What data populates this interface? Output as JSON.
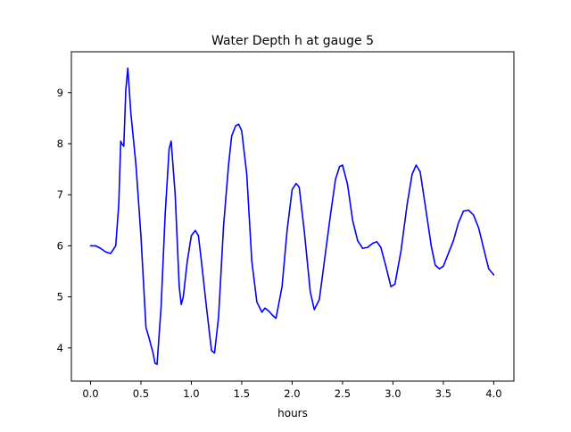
{
  "chart_data": {
    "type": "line",
    "title": "Water Depth h at gauge 5",
    "xlabel": "hours",
    "ylabel": "",
    "xlim": [
      -0.19,
      4.2
    ],
    "ylim": [
      3.35,
      9.8
    ],
    "xticks": [
      0.0,
      0.5,
      1.0,
      1.5,
      2.0,
      2.5,
      3.0,
      3.5,
      4.0
    ],
    "xtick_labels": [
      "0.0",
      "0.5",
      "1.0",
      "1.5",
      "2.0",
      "2.5",
      "3.0",
      "3.5",
      "4.0"
    ],
    "yticks": [
      4,
      5,
      6,
      7,
      8,
      9
    ],
    "ytick_labels": [
      "4",
      "5",
      "6",
      "7",
      "8",
      "9"
    ],
    "grid": false,
    "legend": "none",
    "series": [
      {
        "color": "#0000ff",
        "x": [
          0.0,
          0.05,
          0.1,
          0.15,
          0.2,
          0.25,
          0.28,
          0.3,
          0.31,
          0.33,
          0.35,
          0.37,
          0.4,
          0.45,
          0.5,
          0.55,
          0.58,
          0.62,
          0.64,
          0.66,
          0.7,
          0.74,
          0.78,
          0.8,
          0.84,
          0.88,
          0.9,
          0.92,
          0.96,
          1.0,
          1.04,
          1.07,
          1.1,
          1.15,
          1.2,
          1.23,
          1.27,
          1.32,
          1.37,
          1.4,
          1.44,
          1.47,
          1.5,
          1.55,
          1.6,
          1.65,
          1.7,
          1.73,
          1.77,
          1.8,
          1.84,
          1.9,
          1.95,
          2.0,
          2.04,
          2.07,
          2.12,
          2.18,
          2.22,
          2.27,
          2.32,
          2.38,
          2.43,
          2.47,
          2.5,
          2.55,
          2.6,
          2.65,
          2.7,
          2.75,
          2.8,
          2.84,
          2.88,
          2.93,
          2.98,
          3.02,
          3.08,
          3.14,
          3.19,
          3.23,
          3.27,
          3.32,
          3.38,
          3.42,
          3.46,
          3.5,
          3.55,
          3.6,
          3.65,
          3.7,
          3.75,
          3.8,
          3.85,
          3.9,
          3.95,
          4.0
        ],
        "y": [
          6.0,
          6.0,
          5.95,
          5.88,
          5.85,
          6.0,
          6.8,
          8.05,
          8.0,
          7.95,
          9.05,
          9.48,
          8.6,
          7.6,
          6.2,
          4.4,
          4.2,
          3.9,
          3.7,
          3.68,
          4.8,
          6.6,
          7.9,
          8.05,
          7.0,
          5.2,
          4.85,
          5.0,
          5.7,
          6.2,
          6.3,
          6.2,
          5.7,
          4.8,
          3.95,
          3.9,
          4.6,
          6.4,
          7.6,
          8.15,
          8.35,
          8.38,
          8.25,
          7.4,
          5.7,
          4.9,
          4.7,
          4.78,
          4.72,
          4.65,
          4.58,
          5.2,
          6.3,
          7.1,
          7.22,
          7.15,
          6.3,
          5.1,
          4.75,
          4.95,
          5.7,
          6.6,
          7.3,
          7.55,
          7.58,
          7.2,
          6.5,
          6.1,
          5.95,
          5.97,
          6.05,
          6.08,
          5.97,
          5.6,
          5.2,
          5.25,
          5.9,
          6.8,
          7.4,
          7.58,
          7.45,
          6.8,
          6.0,
          5.62,
          5.55,
          5.6,
          5.85,
          6.1,
          6.45,
          6.68,
          6.7,
          6.6,
          6.35,
          5.95,
          5.55,
          5.43
        ]
      }
    ]
  }
}
